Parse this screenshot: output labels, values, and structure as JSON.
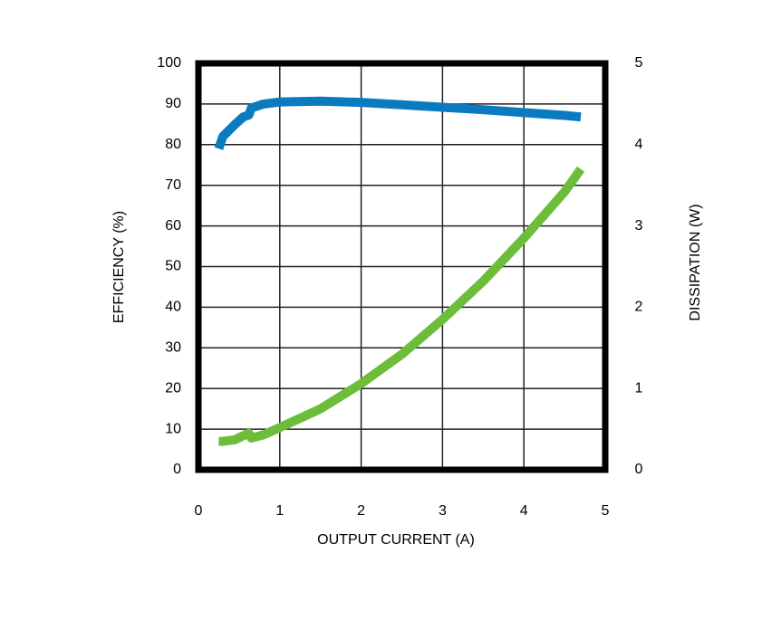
{
  "chart_data": {
    "type": "line",
    "xlabel": "OUTPUT CURRENT (A)",
    "ylabel": "EFFICIENCY (%)",
    "y2label": "DISSIPATION (W)",
    "x": [
      0.25,
      0.3,
      0.45,
      0.55,
      0.62,
      0.65,
      0.8,
      1,
      1.5,
      2,
      2.5,
      3,
      3.5,
      4,
      4.5,
      4.7
    ],
    "series": [
      {
        "name": "Efficiency",
        "color": "#0b7bc1",
        "axis": "y",
        "values": [
          79,
          82,
          85,
          86.8,
          87.3,
          89,
          90,
          90.5,
          90.7,
          90.4,
          89.8,
          89.2,
          88.6,
          87.9,
          87.2,
          86.8
        ]
      },
      {
        "name": "Dissipation",
        "color": "#6cbd3a",
        "axis": "y2",
        "values": [
          0.35,
          0.35,
          0.37,
          0.42,
          0.45,
          0.39,
          0.43,
          0.52,
          0.75,
          1.06,
          1.42,
          1.85,
          2.32,
          2.85,
          3.42,
          3.7
        ]
      }
    ],
    "xlim": [
      0,
      5
    ],
    "xticks": [
      0,
      1,
      2,
      3,
      4,
      5
    ],
    "ylim": [
      0,
      100
    ],
    "yticks": [
      0,
      10,
      20,
      30,
      40,
      50,
      60,
      70,
      80,
      90,
      100
    ],
    "y2lim": [
      0,
      5
    ],
    "y2ticks": [
      0,
      1,
      2,
      3,
      4,
      5
    ],
    "grid": true
  }
}
